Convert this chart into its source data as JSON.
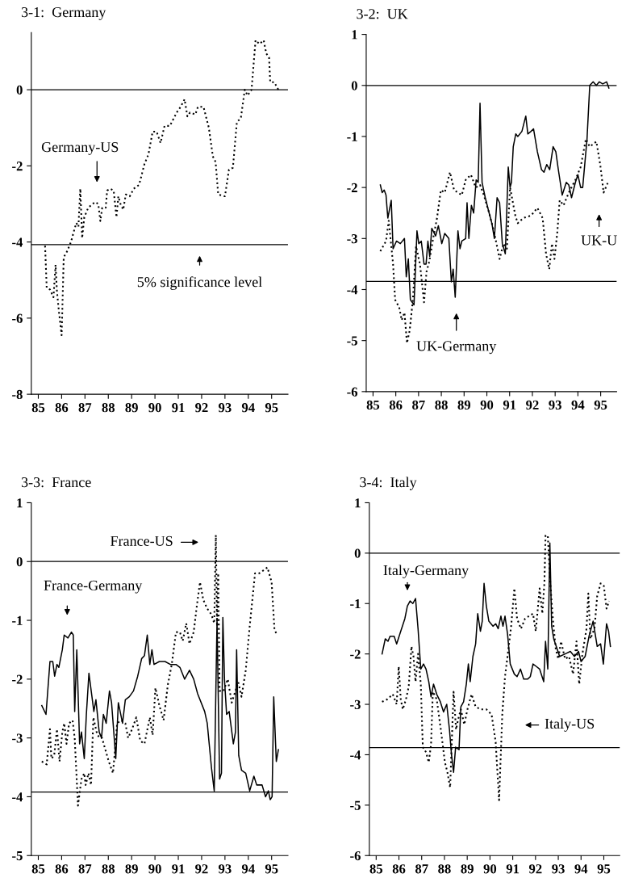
{
  "chart_data": [
    {
      "type": "line",
      "title": "3-1:  Germany",
      "xlim": [
        84.7,
        95.7
      ],
      "xticks": [
        85,
        86,
        87,
        88,
        89,
        90,
        91,
        92,
        93,
        94,
        95
      ],
      "ylim": [
        -8,
        1.5
      ],
      "yticks": [
        0,
        -2,
        -4,
        -6,
        -8
      ],
      "series": [
        {
          "color": "#000000",
          "line_style": "dotted",
          "x": [
            85.29,
            85.36,
            85.5,
            85.65,
            85.74,
            85.8,
            85.88,
            86.0,
            86.09,
            86.23,
            86.4,
            86.51,
            86.63,
            86.72,
            86.8,
            86.88,
            86.97,
            87.14,
            87.43,
            87.57,
            87.66,
            87.74,
            87.89,
            87.95,
            88.08,
            88.23,
            88.35,
            88.43,
            88.52,
            88.64,
            88.75,
            88.92,
            89.09,
            89.32,
            89.55,
            89.72,
            89.9,
            90.07,
            90.24,
            90.41,
            90.64,
            90.93,
            91.1,
            91.27,
            91.39,
            91.5,
            91.73,
            91.84,
            92.08,
            92.31,
            92.48,
            92.6,
            92.71,
            93.0,
            93.17,
            93.34,
            93.51,
            93.68,
            93.85,
            93.97,
            94.14,
            94.31,
            94.48,
            94.66,
            94.77,
            94.89,
            94.94,
            95.11,
            95.29
          ],
          "values": [
            -4.1,
            -5.2,
            -5.25,
            -5.45,
            -4.6,
            -5.3,
            -5.8,
            -6.45,
            -4.4,
            -4.25,
            -4.0,
            -3.75,
            -3.5,
            -3.6,
            -2.6,
            -3.9,
            -3.35,
            -3.1,
            -2.95,
            -3.0,
            -3.45,
            -3.1,
            -3.1,
            -2.65,
            -2.6,
            -2.65,
            -3.35,
            -2.8,
            -3.0,
            -3.15,
            -2.75,
            -2.8,
            -2.6,
            -2.5,
            -1.95,
            -1.7,
            -1.1,
            -1.1,
            -1.4,
            -0.95,
            -0.95,
            -0.6,
            -0.45,
            -0.25,
            -0.7,
            -0.6,
            -0.65,
            -0.45,
            -0.45,
            -1.0,
            -1.75,
            -1.9,
            -2.75,
            -2.8,
            -2.1,
            -2.05,
            -0.85,
            -0.75,
            0.0,
            -0.15,
            0.0,
            1.3,
            1.2,
            1.3,
            0.95,
            0.85,
            0.2,
            0.2,
            0.0
          ]
        }
      ],
      "ref_lines": [
        {
          "axis": "y",
          "value": 0,
          "color": "#000000"
        },
        {
          "axis": "y",
          "value": -4.07,
          "color": "#000000"
        }
      ],
      "annotations": [
        "Germany-US",
        "5% significance level"
      ]
    },
    {
      "type": "line",
      "title": "3-2:  UK",
      "xlim": [
        84.7,
        95.7
      ],
      "xticks": [
        85,
        86,
        87,
        88,
        89,
        90,
        91,
        92,
        93,
        94,
        95
      ],
      "ylim": [
        -6,
        1
      ],
      "yticks": [
        1,
        0,
        -1,
        -2,
        -3,
        -4,
        -5,
        -6
      ],
      "series": [
        {
          "color": "#000000",
          "line_style": "solid",
          "x": [
            85.32,
            85.4,
            85.49,
            85.57,
            85.65,
            85.8,
            85.88,
            86.03,
            86.2,
            86.38,
            86.46,
            86.55,
            86.64,
            86.8,
            86.93,
            87.01,
            87.12,
            87.24,
            87.33,
            87.41,
            87.49,
            87.58,
            87.75,
            87.87,
            88.02,
            88.15,
            88.33,
            88.44,
            88.52,
            88.61,
            88.73,
            88.82,
            88.9,
            89.07,
            89.13,
            89.21,
            89.32,
            89.42,
            89.53,
            89.62,
            89.7,
            89.79,
            89.93,
            90.1,
            90.22,
            90.33,
            90.45,
            90.56,
            90.68,
            90.81,
            90.94,
            91.02,
            91.08,
            91.16,
            91.27,
            91.36,
            91.54,
            91.71,
            91.8,
            91.94,
            92.05,
            92.22,
            92.4,
            92.51,
            92.63,
            92.76,
            92.91,
            93.03,
            93.14,
            93.31,
            93.49,
            93.6,
            93.72,
            93.89,
            94.0,
            94.12,
            94.21,
            94.4,
            94.52,
            94.67,
            94.81,
            94.94,
            95.09,
            95.26,
            95.36
          ],
          "values": [
            -1.95,
            -2.1,
            -2.05,
            -2.15,
            -2.6,
            -2.25,
            -3.2,
            -3.05,
            -3.1,
            -3.0,
            -3.75,
            -3.4,
            -4.2,
            -4.3,
            -2.85,
            -3.1,
            -3.05,
            -3.5,
            -3.5,
            -3.05,
            -3.35,
            -2.8,
            -2.95,
            -2.75,
            -3.1,
            -2.9,
            -3.0,
            -3.85,
            -3.6,
            -4.15,
            -2.85,
            -3.2,
            -3.05,
            -3.0,
            -2.3,
            -3.0,
            -2.35,
            -2.5,
            -1.85,
            -1.9,
            -0.35,
            -1.9,
            -2.2,
            -2.5,
            -2.7,
            -3.0,
            -2.2,
            -2.3,
            -3.1,
            -3.3,
            -1.6,
            -2.0,
            -1.9,
            -1.2,
            -0.95,
            -1.0,
            -0.9,
            -0.6,
            -0.95,
            -0.9,
            -0.85,
            -1.3,
            -1.65,
            -1.7,
            -1.55,
            -1.65,
            -1.2,
            -1.3,
            -1.65,
            -2.15,
            -1.9,
            -1.95,
            -2.2,
            -1.9,
            -1.75,
            -2.0,
            -2.0,
            -1.05,
            0.0,
            0.07,
            0.0,
            0.07,
            0.03,
            0.07,
            -0.05
          ]
        },
        {
          "color": "#000000",
          "line_style": "dotted",
          "x": [
            85.32,
            85.57,
            85.69,
            85.88,
            85.97,
            86.15,
            86.26,
            86.38,
            86.49,
            86.61,
            86.75,
            86.89,
            87.06,
            87.24,
            87.35,
            87.47,
            87.64,
            87.81,
            87.98,
            88.15,
            88.38,
            88.56,
            88.73,
            88.9,
            89.07,
            89.3,
            89.51,
            89.7,
            89.87,
            90.1,
            90.33,
            90.56,
            90.73,
            90.88,
            91.02,
            91.25,
            91.36,
            91.59,
            91.94,
            92.22,
            92.45,
            92.6,
            92.74,
            92.86,
            92.97,
            93.09,
            93.2,
            93.37,
            93.6,
            93.89,
            94.12,
            94.35,
            94.52,
            94.81,
            94.98,
            95.13,
            95.32
          ],
          "values": [
            -3.25,
            -3.05,
            -2.65,
            -3.5,
            -4.2,
            -4.35,
            -4.6,
            -4.45,
            -5.05,
            -4.8,
            -4.2,
            -3.15,
            -3.5,
            -4.25,
            -3.65,
            -3.45,
            -3.0,
            -2.6,
            -2.05,
            -2.1,
            -1.7,
            -2.05,
            -2.1,
            -2.15,
            -1.85,
            -1.75,
            -2.0,
            -1.95,
            -2.15,
            -2.5,
            -2.9,
            -3.4,
            -3.1,
            -3.2,
            -2.0,
            -2.55,
            -2.7,
            -2.6,
            -2.55,
            -2.4,
            -2.6,
            -3.3,
            -3.6,
            -3.1,
            -3.4,
            -2.9,
            -2.25,
            -2.35,
            -2.1,
            -1.85,
            -1.6,
            -1.05,
            -1.2,
            -1.1,
            -1.55,
            -2.1,
            -1.9
          ]
        }
      ],
      "ref_lines": [
        {
          "axis": "y",
          "value": 0,
          "color": "#000000"
        },
        {
          "axis": "y",
          "value": -3.84,
          "color": "#000000"
        }
      ],
      "annotations": [
        "UK-Germany",
        "UK-U"
      ]
    },
    {
      "type": "line",
      "title": "3-3:  France",
      "xlim": [
        84.7,
        95.7
      ],
      "xticks": [
        85,
        86,
        87,
        88,
        89,
        90,
        91,
        92,
        93,
        94,
        95
      ],
      "ylim": [
        -5,
        1
      ],
      "yticks": [
        1,
        0,
        -1,
        -2,
        -3,
        -4,
        -5
      ],
      "series": [
        {
          "color": "#000000",
          "line_style": "solid",
          "x": [
            85.15,
            85.33,
            85.5,
            85.62,
            85.7,
            85.8,
            85.88,
            86.03,
            86.11,
            86.27,
            86.42,
            86.5,
            86.56,
            86.65,
            86.77,
            86.85,
            86.97,
            87.06,
            87.17,
            87.3,
            87.38,
            87.47,
            87.61,
            87.71,
            87.79,
            87.91,
            88.05,
            88.14,
            88.32,
            88.43,
            88.61,
            88.73,
            88.9,
            89.08,
            89.26,
            89.43,
            89.55,
            89.67,
            89.78,
            89.87,
            89.96,
            90.19,
            90.43,
            90.66,
            90.9,
            91.07,
            91.27,
            91.48,
            91.66,
            91.83,
            92.13,
            92.24,
            92.42,
            92.54,
            92.66,
            92.77,
            92.85,
            92.91,
            92.98,
            93.07,
            93.18,
            93.36,
            93.45,
            93.5,
            93.59,
            93.71,
            93.89,
            94.06,
            94.24,
            94.36,
            94.59,
            94.74,
            94.86,
            94.94,
            95.02,
            95.09,
            95.2,
            95.29
          ],
          "values": [
            -2.45,
            -2.6,
            -1.7,
            -1.7,
            -1.95,
            -1.75,
            -1.8,
            -1.5,
            -1.25,
            -1.3,
            -1.2,
            -1.25,
            -2.55,
            -1.5,
            -3.1,
            -2.9,
            -3.35,
            -2.6,
            -1.9,
            -2.3,
            -2.55,
            -2.35,
            -2.9,
            -3.0,
            -2.6,
            -2.75,
            -2.2,
            -2.4,
            -3.35,
            -2.4,
            -2.75,
            -2.35,
            -2.3,
            -2.2,
            -1.95,
            -1.65,
            -1.6,
            -1.25,
            -1.75,
            -1.5,
            -1.75,
            -1.7,
            -1.7,
            -1.75,
            -1.75,
            -1.8,
            -2.0,
            -1.85,
            -2.0,
            -2.25,
            -2.55,
            -2.75,
            -3.5,
            -3.9,
            -1.0,
            -3.7,
            -3.6,
            -0.95,
            -2.0,
            -2.6,
            -2.55,
            -3.1,
            -2.9,
            -1.5,
            -3.3,
            -3.55,
            -3.6,
            -3.9,
            -3.65,
            -3.8,
            -3.8,
            -4.0,
            -3.9,
            -4.05,
            -4.0,
            -2.3,
            -3.4,
            -3.2
          ]
        },
        {
          "color": "#000000",
          "line_style": "dotted",
          "x": [
            85.15,
            85.36,
            85.5,
            85.56,
            85.68,
            85.8,
            85.91,
            86.03,
            86.11,
            86.21,
            86.32,
            86.47,
            86.56,
            86.7,
            86.85,
            86.97,
            87.03,
            87.15,
            87.26,
            87.36,
            87.5,
            87.61,
            87.73,
            87.91,
            88.02,
            88.2,
            88.29,
            88.38,
            88.55,
            88.73,
            88.85,
            89.02,
            89.2,
            89.37,
            89.55,
            89.78,
            89.9,
            90.02,
            90.19,
            90.37,
            90.55,
            90.72,
            90.9,
            91.07,
            91.19,
            91.34,
            91.48,
            91.66,
            91.78,
            91.93,
            92.07,
            92.24,
            92.42,
            92.54,
            92.61,
            92.66,
            92.71,
            92.77,
            92.94,
            93.12,
            93.29,
            93.41,
            93.57,
            93.71,
            93.89,
            94.06,
            94.29,
            94.47,
            94.65,
            94.82,
            95.0,
            95.12,
            95.23
          ],
          "values": [
            -3.4,
            -3.45,
            -2.85,
            -3.35,
            -3.3,
            -2.85,
            -3.4,
            -2.9,
            -2.75,
            -3.1,
            -2.75,
            -2.7,
            -3.0,
            -4.15,
            -3.7,
            -3.6,
            -3.8,
            -3.6,
            -3.8,
            -2.65,
            -2.9,
            -3.0,
            -3.0,
            -3.25,
            -3.4,
            -3.6,
            -3.2,
            -2.75,
            -2.7,
            -2.75,
            -3.0,
            -2.85,
            -2.65,
            -3.05,
            -3.1,
            -2.65,
            -2.95,
            -2.15,
            -2.45,
            -2.7,
            -2.1,
            -1.75,
            -1.2,
            -1.2,
            -1.35,
            -1.05,
            -1.4,
            -1.2,
            -0.8,
            -0.35,
            -0.65,
            -0.8,
            -0.9,
            -1.05,
            0.45,
            -1.1,
            -0.2,
            -2.2,
            -2.2,
            -2.0,
            -2.4,
            -2.25,
            -2.05,
            -2.3,
            -1.85,
            -1.1,
            -0.2,
            -0.2,
            -0.15,
            -0.1,
            -0.35,
            -1.15,
            -1.25
          ]
        }
      ],
      "ref_lines": [
        {
          "axis": "y",
          "value": 0,
          "color": "#000000"
        },
        {
          "axis": "y",
          "value": -3.92,
          "color": "#000000"
        }
      ],
      "annotations": [
        "France-US",
        "France-Germany"
      ]
    },
    {
      "type": "line",
      "title": "3-4:  Italy",
      "xlim": [
        84.7,
        95.7
      ],
      "xticks": [
        85,
        86,
        87,
        88,
        89,
        90,
        91,
        92,
        93,
        94,
        95
      ],
      "ylim": [
        -6,
        1
      ],
      "yticks": [
        1,
        0,
        -1,
        -2,
        -3,
        -4,
        -5,
        -6
      ],
      "series": [
        {
          "color": "#000000",
          "line_style": "solid",
          "x": [
            85.26,
            85.4,
            85.52,
            85.61,
            85.79,
            85.9,
            86.08,
            86.26,
            86.37,
            86.49,
            86.61,
            86.73,
            86.84,
            86.96,
            87.08,
            87.19,
            87.31,
            87.41,
            87.52,
            87.66,
            87.82,
            87.96,
            88.1,
            88.22,
            88.31,
            88.4,
            88.49,
            88.64,
            88.72,
            88.84,
            88.96,
            89.05,
            89.13,
            89.25,
            89.37,
            89.46,
            89.58,
            89.66,
            89.74,
            89.84,
            89.95,
            90.13,
            90.25,
            90.36,
            90.48,
            90.57,
            90.66,
            90.77,
            90.89,
            91.07,
            91.19,
            91.34,
            91.48,
            91.65,
            91.77,
            91.89,
            92.04,
            92.18,
            92.36,
            92.44,
            92.54,
            92.63,
            92.71,
            92.8,
            92.95,
            93.06,
            93.3,
            93.53,
            93.71,
            93.89,
            94.0,
            94.18,
            94.35,
            94.53,
            94.71,
            94.86,
            94.98,
            95.12,
            95.21,
            95.29
          ],
          "values": [
            -2.0,
            -1.7,
            -1.75,
            -1.65,
            -1.65,
            -1.8,
            -1.55,
            -1.3,
            -1.05,
            -0.95,
            -1.0,
            -0.9,
            -1.5,
            -2.3,
            -2.2,
            -2.3,
            -2.55,
            -2.85,
            -2.6,
            -2.8,
            -2.95,
            -3.15,
            -3.0,
            -3.5,
            -4.0,
            -4.35,
            -3.85,
            -3.9,
            -3.05,
            -2.95,
            -2.6,
            -2.2,
            -2.55,
            -2.05,
            -1.8,
            -1.2,
            -1.55,
            -1.35,
            -0.6,
            -1.05,
            -1.35,
            -1.45,
            -1.4,
            -1.5,
            -1.25,
            -1.45,
            -1.25,
            -1.6,
            -2.2,
            -2.4,
            -2.45,
            -2.3,
            -2.5,
            -2.5,
            -2.45,
            -2.2,
            -2.25,
            -2.3,
            -2.55,
            -1.75,
            -2.3,
            0.2,
            -1.45,
            -1.7,
            -1.9,
            -2.05,
            -2.0,
            -1.95,
            -2.05,
            -1.95,
            -2.15,
            -2.05,
            -1.65,
            -1.35,
            -1.85,
            -1.8,
            -2.2,
            -1.4,
            -1.55,
            -1.85
          ]
        },
        {
          "color": "#000000",
          "line_style": "dotted",
          "x": [
            85.26,
            85.49,
            85.73,
            85.9,
            85.99,
            86.08,
            86.17,
            86.31,
            86.43,
            86.55,
            86.64,
            86.73,
            86.84,
            86.96,
            87.05,
            87.19,
            87.31,
            87.41,
            87.49,
            87.66,
            87.84,
            88.02,
            88.13,
            88.25,
            88.4,
            88.51,
            88.6,
            88.72,
            88.87,
            89.01,
            89.19,
            89.37,
            89.6,
            89.84,
            90.07,
            90.25,
            90.4,
            90.54,
            90.66,
            90.77,
            90.93,
            91.07,
            91.19,
            91.36,
            91.54,
            91.71,
            91.89,
            92.01,
            92.18,
            92.3,
            92.39,
            92.44,
            92.54,
            92.65,
            92.77,
            92.89,
            93.0,
            93.12,
            93.3,
            93.47,
            93.65,
            93.8,
            93.92,
            94.06,
            94.24,
            94.32,
            94.41,
            94.59,
            94.71,
            94.86,
            95.0,
            95.12,
            95.23
          ],
          "values": [
            -2.95,
            -2.9,
            -2.8,
            -3.0,
            -2.25,
            -2.9,
            -3.1,
            -2.9,
            -2.65,
            -1.85,
            -2.05,
            -2.55,
            -2.0,
            -2.6,
            -3.85,
            -3.95,
            -4.15,
            -3.8,
            -2.75,
            -2.9,
            -3.5,
            -4.15,
            -4.35,
            -4.65,
            -2.75,
            -3.5,
            -3.3,
            -3.1,
            -3.4,
            -3.1,
            -2.8,
            -3.05,
            -3.1,
            -3.1,
            -3.2,
            -3.75,
            -4.9,
            -3.2,
            -2.45,
            -2.05,
            -1.45,
            -0.7,
            -1.3,
            -1.5,
            -1.3,
            -1.25,
            -1.2,
            -1.55,
            -0.7,
            -1.2,
            -0.6,
            0.35,
            0.35,
            -0.6,
            -1.35,
            -1.9,
            -2.1,
            -1.75,
            -2.1,
            -2.05,
            -2.4,
            -1.75,
            -2.6,
            -2.0,
            -1.5,
            -0.8,
            -1.7,
            -1.5,
            -0.85,
            -0.6,
            -0.65,
            -1.1,
            -0.95
          ]
        }
      ],
      "ref_lines": [
        {
          "axis": "y",
          "value": 0,
          "color": "#000000"
        },
        {
          "axis": "y",
          "value": -3.86,
          "color": "#000000"
        }
      ],
      "annotations": [
        "Italy-Germany",
        "Italy-US"
      ]
    }
  ]
}
